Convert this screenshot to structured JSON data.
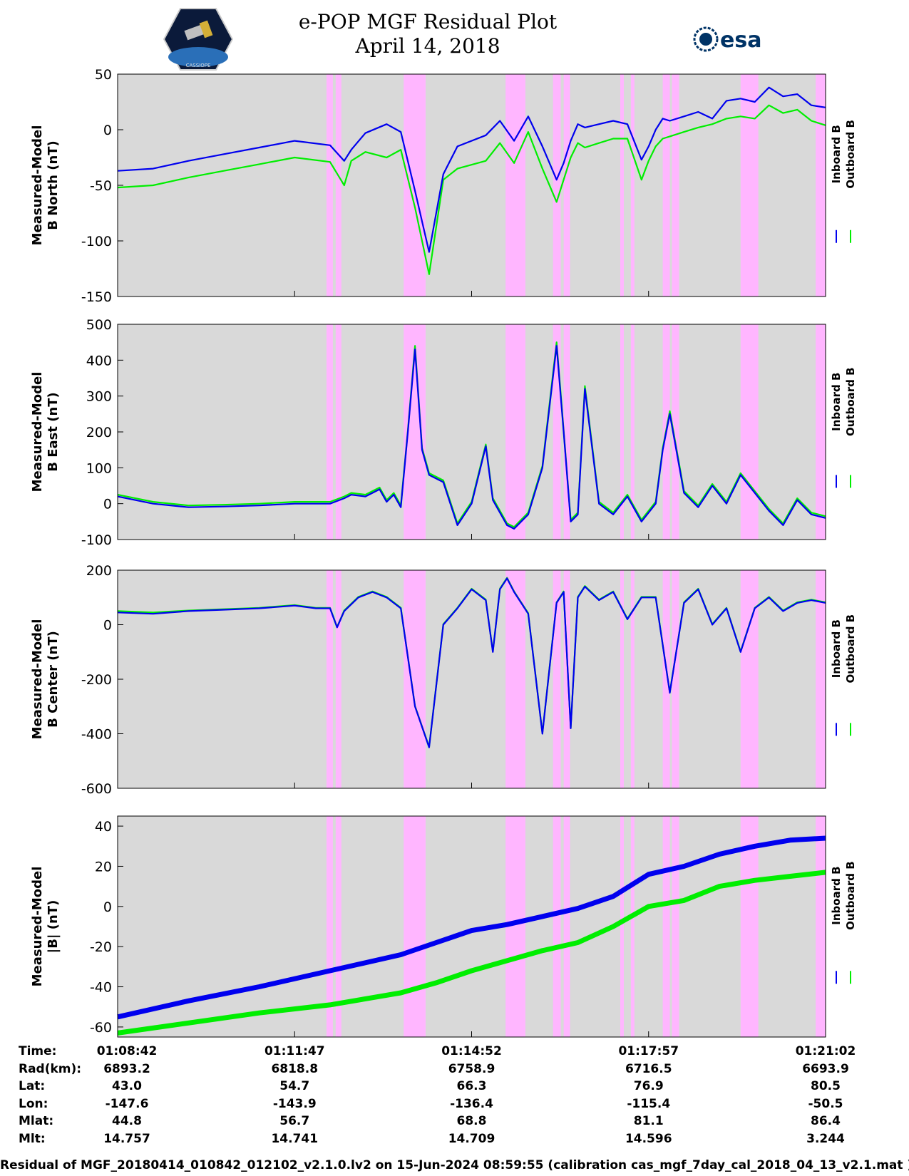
{
  "page": {
    "title_line1": "e-POP MGF Residual Plot",
    "title_line2": "April 14, 2018",
    "logo_left_text": "CASSIOPE",
    "logo_right_text": "esa",
    "footer": "Residual of MGF_20180414_010842_012102_v2.1.0.lv2 on 15-Jun-2024 08:59:55 (calibration cas_mgf_7day_cal_2018_04_13_v2.1.mat )"
  },
  "colors": {
    "inboard": "#0000ee",
    "outboard": "#00ee00",
    "background": "#d9d9d9",
    "highlight": "#ffb6ff"
  },
  "chart_data": [
    {
      "type": "line",
      "ylabel": [
        "Measured-Model",
        "B North (nT)"
      ],
      "ylim": [
        -150,
        50
      ],
      "yticks": [
        50,
        0,
        -50,
        -100,
        -150
      ],
      "x": [
        0,
        5,
        10,
        15,
        20,
        25,
        30,
        32,
        33,
        35,
        38,
        40,
        42,
        44,
        46,
        48,
        52,
        54,
        56,
        58,
        60,
        62,
        63,
        64,
        65,
        66,
        68,
        70,
        72,
        74,
        75,
        76,
        77,
        78,
        80,
        82,
        84,
        86,
        88,
        90,
        92,
        94,
        96,
        98,
        100
      ],
      "series": [
        {
          "name": "Inboard B",
          "values": [
            -37,
            -35,
            -28,
            -22,
            -16,
            -10,
            -14,
            -28,
            -18,
            -3,
            5,
            -2,
            -55,
            -110,
            -40,
            -15,
            -5,
            8,
            -10,
            12,
            -15,
            -45,
            -30,
            -10,
            5,
            2,
            5,
            8,
            5,
            -27,
            -15,
            0,
            10,
            8,
            12,
            16,
            10,
            26,
            28,
            25,
            38,
            30,
            32,
            22,
            20
          ]
        },
        {
          "name": "Outboard B",
          "values": [
            -52,
            -50,
            -43,
            -37,
            -31,
            -25,
            -29,
            -50,
            -28,
            -20,
            -25,
            -18,
            -70,
            -130,
            -45,
            -35,
            -28,
            -12,
            -30,
            -2,
            -35,
            -65,
            -45,
            -25,
            -12,
            -16,
            -12,
            -8,
            -8,
            -45,
            -28,
            -15,
            -8,
            -6,
            -2,
            2,
            5,
            10,
            12,
            10,
            22,
            15,
            18,
            8,
            4
          ]
        }
      ]
    },
    {
      "type": "line",
      "ylabel": [
        "Measured-Model",
        "B East (nT)"
      ],
      "ylim": [
        -100,
        500
      ],
      "yticks": [
        500,
        400,
        300,
        200,
        100,
        0,
        -100
      ],
      "x": [
        0,
        5,
        10,
        15,
        20,
        25,
        30,
        32,
        33,
        35,
        37,
        38,
        39,
        40,
        41,
        42,
        43,
        44,
        46,
        48,
        50,
        52,
        53,
        55,
        56,
        57,
        58,
        60,
        62,
        63,
        64,
        65,
        66,
        68,
        70,
        72,
        74,
        76,
        77,
        78,
        80,
        82,
        84,
        86,
        88,
        90,
        92,
        94,
        96,
        98,
        100
      ],
      "series": [
        {
          "name": "Inboard B",
          "values": [
            20,
            0,
            -10,
            -8,
            -5,
            0,
            0,
            15,
            25,
            20,
            40,
            5,
            25,
            -10,
            200,
            430,
            150,
            80,
            60,
            -60,
            0,
            160,
            10,
            -60,
            -70,
            -50,
            -30,
            100,
            440,
            200,
            -50,
            -30,
            320,
            0,
            -30,
            20,
            -50,
            0,
            150,
            250,
            30,
            -10,
            50,
            0,
            80,
            30,
            -20,
            -60,
            10,
            -30,
            -40
          ]
        },
        {
          "name": "Outboard B",
          "values": [
            25,
            5,
            -5,
            -3,
            0,
            5,
            5,
            20,
            30,
            25,
            45,
            10,
            30,
            -5,
            205,
            440,
            155,
            85,
            65,
            -55,
            5,
            165,
            15,
            -55,
            -65,
            -45,
            -25,
            105,
            450,
            205,
            -45,
            -25,
            328,
            5,
            -25,
            25,
            -45,
            5,
            155,
            258,
            35,
            -5,
            55,
            5,
            85,
            35,
            -15,
            -55,
            15,
            -25,
            -35
          ]
        }
      ]
    },
    {
      "type": "line",
      "ylabel": [
        "Measured-Model",
        "B Center (nT)"
      ],
      "ylim": [
        -600,
        200
      ],
      "yticks": [
        200,
        0,
        -200,
        -400,
        -600
      ],
      "x": [
        0,
        5,
        10,
        15,
        20,
        25,
        28,
        30,
        31,
        32,
        34,
        36,
        38,
        40,
        42,
        44,
        46,
        48,
        50,
        52,
        53,
        54,
        55,
        56,
        58,
        60,
        62,
        63,
        64,
        65,
        66,
        68,
        70,
        72,
        74,
        76,
        78,
        80,
        82,
        84,
        86,
        88,
        90,
        92,
        94,
        96,
        98,
        100
      ],
      "series": [
        {
          "name": "Inboard B",
          "values": [
            45,
            40,
            50,
            55,
            60,
            70,
            60,
            60,
            -10,
            50,
            100,
            120,
            100,
            60,
            -300,
            -450,
            0,
            60,
            130,
            90,
            -100,
            130,
            170,
            120,
            40,
            -400,
            80,
            120,
            -380,
            100,
            140,
            90,
            120,
            20,
            100,
            100,
            -250,
            80,
            130,
            0,
            60,
            -100,
            60,
            100,
            50,
            80,
            90,
            80
          ]
        },
        {
          "name": "Outboard B",
          "values": [
            50,
            45,
            52,
            57,
            62,
            72,
            62,
            62,
            -8,
            52,
            102,
            122,
            102,
            62,
            -298,
            -448,
            2,
            62,
            132,
            92,
            -98,
            132,
            172,
            122,
            42,
            -398,
            82,
            122,
            -378,
            102,
            142,
            92,
            122,
            22,
            102,
            102,
            -248,
            82,
            132,
            2,
            62,
            -98,
            62,
            102,
            52,
            82,
            92,
            82
          ]
        }
      ]
    },
    {
      "type": "line",
      "ylabel": [
        "Measured-Model",
        "|B| (nT)"
      ],
      "ylim": [
        -65,
        45
      ],
      "yticks": [
        40,
        20,
        0,
        -20,
        -40,
        -60
      ],
      "x": [
        0,
        10,
        20,
        30,
        40,
        45,
        50,
        55,
        60,
        65,
        70,
        75,
        80,
        85,
        90,
        95,
        100
      ],
      "series": [
        {
          "name": "Inboard B",
          "values": [
            -55,
            -47,
            -40,
            -32,
            -24,
            -18,
            -12,
            -9,
            -5,
            -1,
            5,
            16,
            20,
            26,
            30,
            33,
            34
          ]
        },
        {
          "name": "Outboard B",
          "values": [
            -63,
            -58,
            -53,
            -49,
            -43,
            -38,
            -32,
            -27,
            -22,
            -18,
            -10,
            0,
            3,
            10,
            13,
            15,
            17
          ]
        }
      ]
    }
  ],
  "highlight_bands": [
    [
      29.5,
      30.4
    ],
    [
      30.8,
      31.6
    ],
    [
      40.4,
      43.5
    ],
    [
      54.8,
      57.6
    ],
    [
      61.5,
      62.6
    ],
    [
      63.0,
      63.9
    ],
    [
      71.0,
      71.5
    ],
    [
      72.5,
      73.0
    ],
    [
      77.0,
      78.0
    ],
    [
      78.3,
      79.3
    ],
    [
      88.0,
      90.5
    ],
    [
      98.6,
      100
    ]
  ],
  "legend": {
    "inboard": "Inboard B",
    "outboard": "Outboard B"
  },
  "x_axis": {
    "ticks": [
      {
        "Time": "01:08:42",
        "Rad(km)": "6893.2",
        "Lat": "43.0",
        "Lon": "-147.6",
        "Mlat": "44.8",
        "Mlt": "14.757"
      },
      {
        "Time": "01:11:47",
        "Rad(km)": "6818.8",
        "Lat": "54.7",
        "Lon": "-143.9",
        "Mlat": "56.7",
        "Mlt": "14.741"
      },
      {
        "Time": "01:14:52",
        "Rad(km)": "6758.9",
        "Lat": "66.3",
        "Lon": "-136.4",
        "Mlat": "68.8",
        "Mlt": "14.709"
      },
      {
        "Time": "01:17:57",
        "Rad(km)": "6716.5",
        "Lat": "76.9",
        "Lon": "-115.4",
        "Mlat": "81.1",
        "Mlt": "14.596"
      },
      {
        "Time": "01:21:02",
        "Rad(km)": "6693.9",
        "Lat": "80.5",
        "Lon": "-50.5",
        "Mlat": "86.4",
        "Mlt": "3.244"
      }
    ],
    "rows": [
      "Time:",
      "Rad(km):",
      "Lat:",
      "Lon:",
      "Mlat:",
      "Mlt:"
    ],
    "row_keys": [
      "Time",
      "Rad(km)",
      "Lat",
      "Lon",
      "Mlat",
      "Mlt"
    ]
  }
}
